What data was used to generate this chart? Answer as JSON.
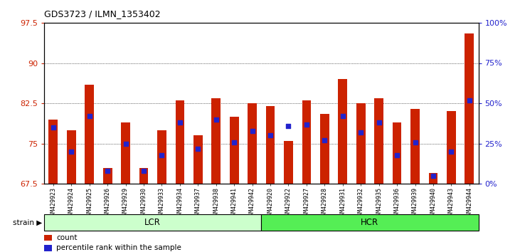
{
  "title": "GDS3723 / ILMN_1353402",
  "samples": [
    "GSM429923",
    "GSM429924",
    "GSM429925",
    "GSM429926",
    "GSM429929",
    "GSM429930",
    "GSM429933",
    "GSM429934",
    "GSM429937",
    "GSM429938",
    "GSM429941",
    "GSM429942",
    "GSM429920",
    "GSM429922",
    "GSM429927",
    "GSM429928",
    "GSM429931",
    "GSM429932",
    "GSM429935",
    "GSM429936",
    "GSM429939",
    "GSM429940",
    "GSM429943",
    "GSM429944"
  ],
  "counts": [
    79.5,
    77.5,
    86.0,
    70.5,
    79.0,
    70.5,
    77.5,
    83.0,
    76.5,
    83.5,
    80.0,
    82.5,
    82.0,
    75.5,
    83.0,
    80.5,
    87.0,
    82.5,
    83.5,
    79.0,
    81.5,
    69.5,
    81.0,
    95.5
  ],
  "percentile_ranks": [
    35,
    20,
    42,
    8,
    25,
    8,
    18,
    38,
    22,
    40,
    26,
    33,
    30,
    36,
    37,
    27,
    42,
    32,
    38,
    18,
    26,
    5,
    20,
    52
  ],
  "ylim_left": [
    67.5,
    97.5
  ],
  "ylim_right": [
    0,
    100
  ],
  "yticks_left": [
    67.5,
    75.0,
    82.5,
    90.0,
    97.5
  ],
  "yticks_right": [
    0,
    25,
    50,
    75,
    100
  ],
  "bar_color": "#cc2200",
  "dot_color": "#2222cc",
  "background_color": "#ffffff",
  "tick_label_color_left": "#cc2200",
  "tick_label_color_right": "#2222cc",
  "lcr_color": "#ccffcc",
  "hcr_color": "#55ee55",
  "legend_count_color": "#cc2200",
  "legend_pct_color": "#2222cc",
  "lcr_n": 12,
  "hcr_n": 12
}
